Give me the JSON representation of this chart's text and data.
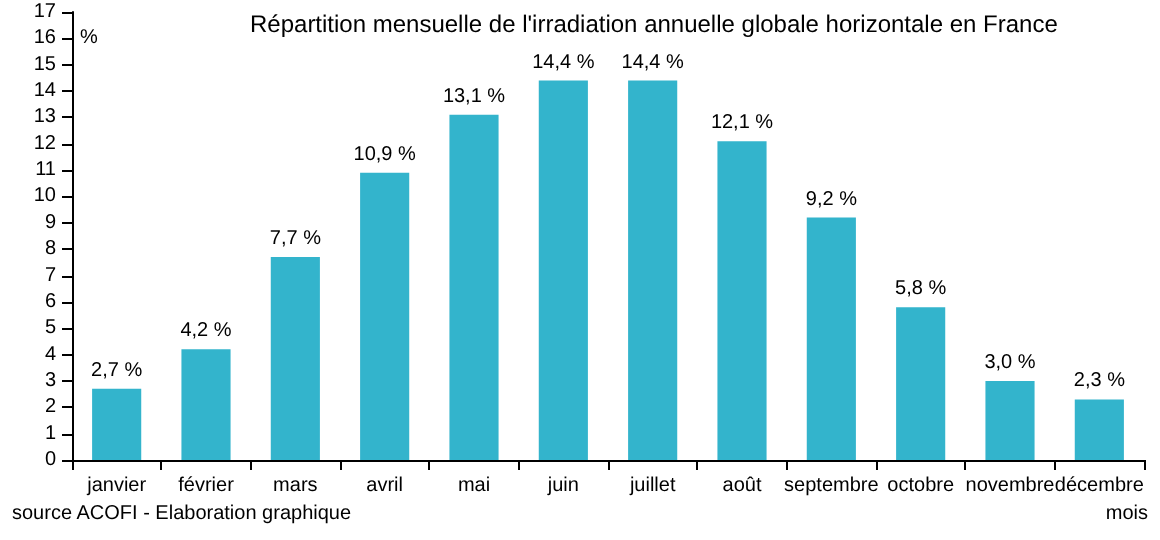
{
  "chart_data": {
    "type": "bar",
    "title": "Répartition mensuelle de l'irradiation annuelle globale horizontale en France",
    "ylabel": "%",
    "xlabel": "mois",
    "annotations": [
      "source ACOFI - Elaboration graphique"
    ],
    "categories": [
      "janvier",
      "février",
      "mars",
      "avril",
      "mai",
      "juin",
      "juillet",
      "août",
      "septembre",
      "octobre",
      "novembre",
      "décembre"
    ],
    "values": [
      2.7,
      4.2,
      7.7,
      10.9,
      13.1,
      14.4,
      14.4,
      12.1,
      9.2,
      5.8,
      3.0,
      2.3
    ],
    "value_labels": [
      "2,7 %",
      "4,2 %",
      "7,7 %",
      "10,9 %",
      "13,1 %",
      "14,4 %",
      "14,4 %",
      "12,1 %",
      "9,2 %",
      "5,8 %",
      "3,0 %",
      "2,3 %"
    ],
    "color": "#33b4cc",
    "ylim": [
      0,
      17
    ],
    "yticks": [
      0,
      1,
      2,
      3,
      4,
      5,
      6,
      7,
      8,
      9,
      10,
      11,
      12,
      13,
      14,
      15,
      16,
      17
    ],
    "grid": false
  }
}
